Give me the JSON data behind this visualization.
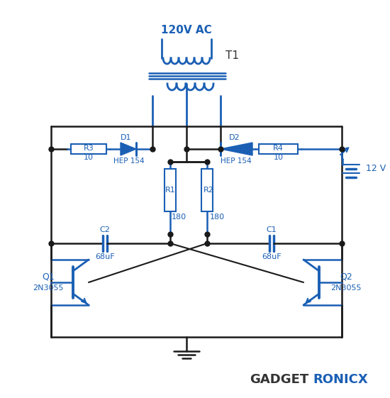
{
  "background_color": "#ffffff",
  "line_color": "#1a5fb4",
  "wire_color": "#1a1a1a",
  "text_color": "#1a5fb4",
  "label_120V": "120V AC",
  "label_T1": "T1",
  "label_12V": "12 V",
  "label_R3": "R3",
  "label_R3_val": "10",
  "label_D1": "D1",
  "label_D1_val": "HEP 154",
  "label_D2": "D2",
  "label_D2_val": "HEP 154",
  "label_R4": "R4",
  "label_R4_val": "10",
  "label_R1": "R1",
  "label_R1_val": "180",
  "label_R2": "R2",
  "label_R2_val": "180",
  "label_C1": "C1",
  "label_C1_val": "68uF",
  "label_C2": "C2",
  "label_C2_val": "68uF",
  "label_Q1": "Q1",
  "label_Q1_val": "2N3055",
  "label_Q2": "Q2",
  "label_Q2_val": "2N3055",
  "label_brand1": "GADGET",
  "label_brand2": "RONICX",
  "figsize": [
    5.5,
    5.61
  ]
}
